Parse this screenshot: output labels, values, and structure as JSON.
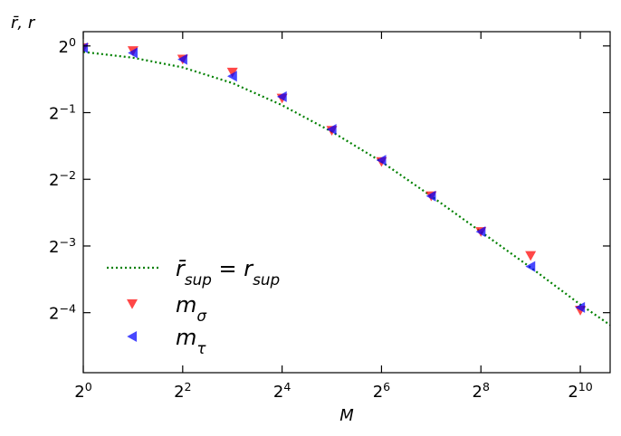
{
  "chart_data": {
    "type": "scatter",
    "xscale": "log2",
    "yscale": "log2",
    "xlim": [
      1,
      1552
    ],
    "ylim": [
      0.0335,
      1.16
    ],
    "xlabel": "M",
    "ylabel": "r̄, r",
    "grid": false,
    "legend_position": "lower-left",
    "x_ticks": [
      {
        "value": 1,
        "base": "2",
        "exp": "0"
      },
      {
        "value": 4,
        "base": "2",
        "exp": "2"
      },
      {
        "value": 16,
        "base": "2",
        "exp": "4"
      },
      {
        "value": 64,
        "base": "2",
        "exp": "6"
      },
      {
        "value": 256,
        "base": "2",
        "exp": "8"
      },
      {
        "value": 1024,
        "base": "2",
        "exp": "10"
      }
    ],
    "y_ticks": [
      {
        "value": 1,
        "base": "2",
        "exp": "0"
      },
      {
        "value": 0.5,
        "base": "2",
        "exp": "−1"
      },
      {
        "value": 0.25,
        "base": "2",
        "exp": "−2"
      },
      {
        "value": 0.125,
        "base": "2",
        "exp": "−3"
      },
      {
        "value": 0.0625,
        "base": "2",
        "exp": "−4"
      }
    ],
    "series": [
      {
        "name": "r̄sup = rsup",
        "kind": "line",
        "style": "dotted",
        "color": "#008000",
        "x": [
          1,
          2,
          4,
          8,
          16,
          32,
          64,
          128,
          256,
          512,
          1024,
          1552
        ],
        "y": [
          0.94,
          0.885,
          0.8,
          0.68,
          0.54,
          0.41,
          0.3,
          0.21,
          0.145,
          0.1,
          0.068,
          0.055
        ]
      },
      {
        "name": "mσ",
        "kind": "marker",
        "marker": "triangle-down",
        "color": "#ff0000",
        "x": [
          1,
          2,
          4,
          8,
          16,
          32,
          64,
          128,
          256,
          512,
          1024
        ],
        "y": [
          0.98,
          0.95,
          0.87,
          0.76,
          0.58,
          0.415,
          0.3,
          0.21,
          0.145,
          0.113,
          0.064
        ]
      },
      {
        "name": "mτ",
        "kind": "marker",
        "marker": "triangle-left",
        "color": "#0000ff",
        "x": [
          1,
          2,
          4,
          8,
          16,
          32,
          64,
          128,
          256,
          512,
          1024
        ],
        "y": [
          0.98,
          0.93,
          0.87,
          0.73,
          0.59,
          0.42,
          0.305,
          0.21,
          0.145,
          0.101,
          0.066
        ]
      }
    ],
    "legend": [
      {
        "series": 0,
        "main": "r̄",
        "sub": "sup",
        "mid": " = r",
        "sub2": "sup"
      },
      {
        "series": 1,
        "main": "m",
        "sub": "σ"
      },
      {
        "series": 2,
        "main": "m",
        "sub": "τ"
      }
    ]
  }
}
